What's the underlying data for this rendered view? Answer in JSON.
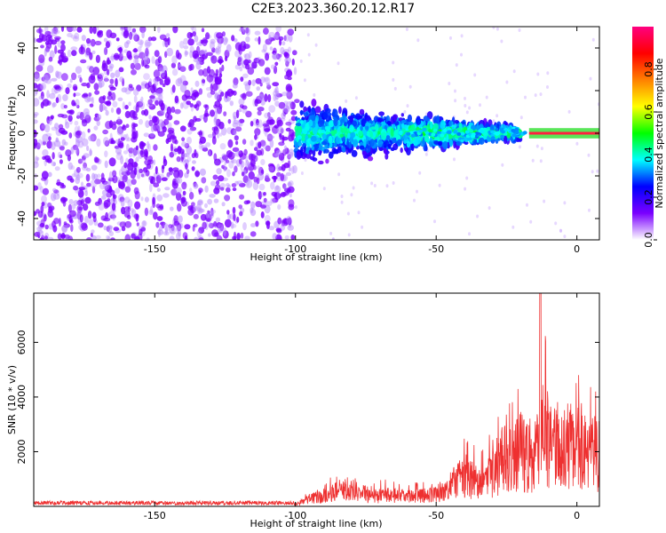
{
  "title": "C2E3.2023.360.20.12.R17",
  "chart_data": [
    {
      "type": "heatmap",
      "xlabel": "Height of straight line (km)",
      "ylabel": "Frequency (Hz)",
      "xlim": [
        -193,
        8
      ],
      "ylim": [
        -50,
        50
      ],
      "xticks": [
        -150,
        -100,
        -50,
        0
      ],
      "yticks": [
        -40,
        -20,
        0,
        20,
        40
      ],
      "colorbar": {
        "label": "Normalized spectral amplitude",
        "range": [
          0,
          1
        ],
        "ticks": [
          0.0,
          0.2,
          0.4,
          0.6,
          0.8
        ],
        "colors": [
          "#ffffff",
          "#7a00ff",
          "#0000ff",
          "#00ffff",
          "#00ff00",
          "#ffff00",
          "#ff8000",
          "#ff0000",
          "#ff0080"
        ]
      },
      "regions": [
        {
          "x": [
            -193,
            -100
          ],
          "description": "noise",
          "amplitude": 0.05
        },
        {
          "x": [
            -100,
            -20
          ],
          "center_freq": 0,
          "amplitude": 0.2
        },
        {
          "x": [
            -17,
            8
          ],
          "center_freq": 0,
          "amplitude": 1.0
        }
      ]
    },
    {
      "type": "line",
      "xlabel": "Height of straight line (km)",
      "ylabel": "SNR (10 * v/v)",
      "xlim": [
        -193,
        8
      ],
      "ylim": [
        0,
        7800
      ],
      "xticks": [
        -150,
        -100,
        -50,
        0
      ],
      "yticks": [
        2000,
        4000,
        6000
      ],
      "color": "#ee3030",
      "envelope": {
        "x": [
          -193,
          -100,
          -95,
          -90,
          -85,
          -80,
          -70,
          -60,
          -50,
          -45,
          -40,
          -35,
          -30,
          -25,
          -20,
          -15,
          -13,
          -10,
          -5,
          0,
          5,
          8
        ],
        "y": [
          150,
          150,
          700,
          1000,
          1400,
          1200,
          1000,
          900,
          1000,
          1800,
          2800,
          2200,
          2800,
          4500,
          5000,
          4200,
          7800,
          5800,
          5500,
          5200,
          4800,
          4500
        ]
      }
    }
  ]
}
